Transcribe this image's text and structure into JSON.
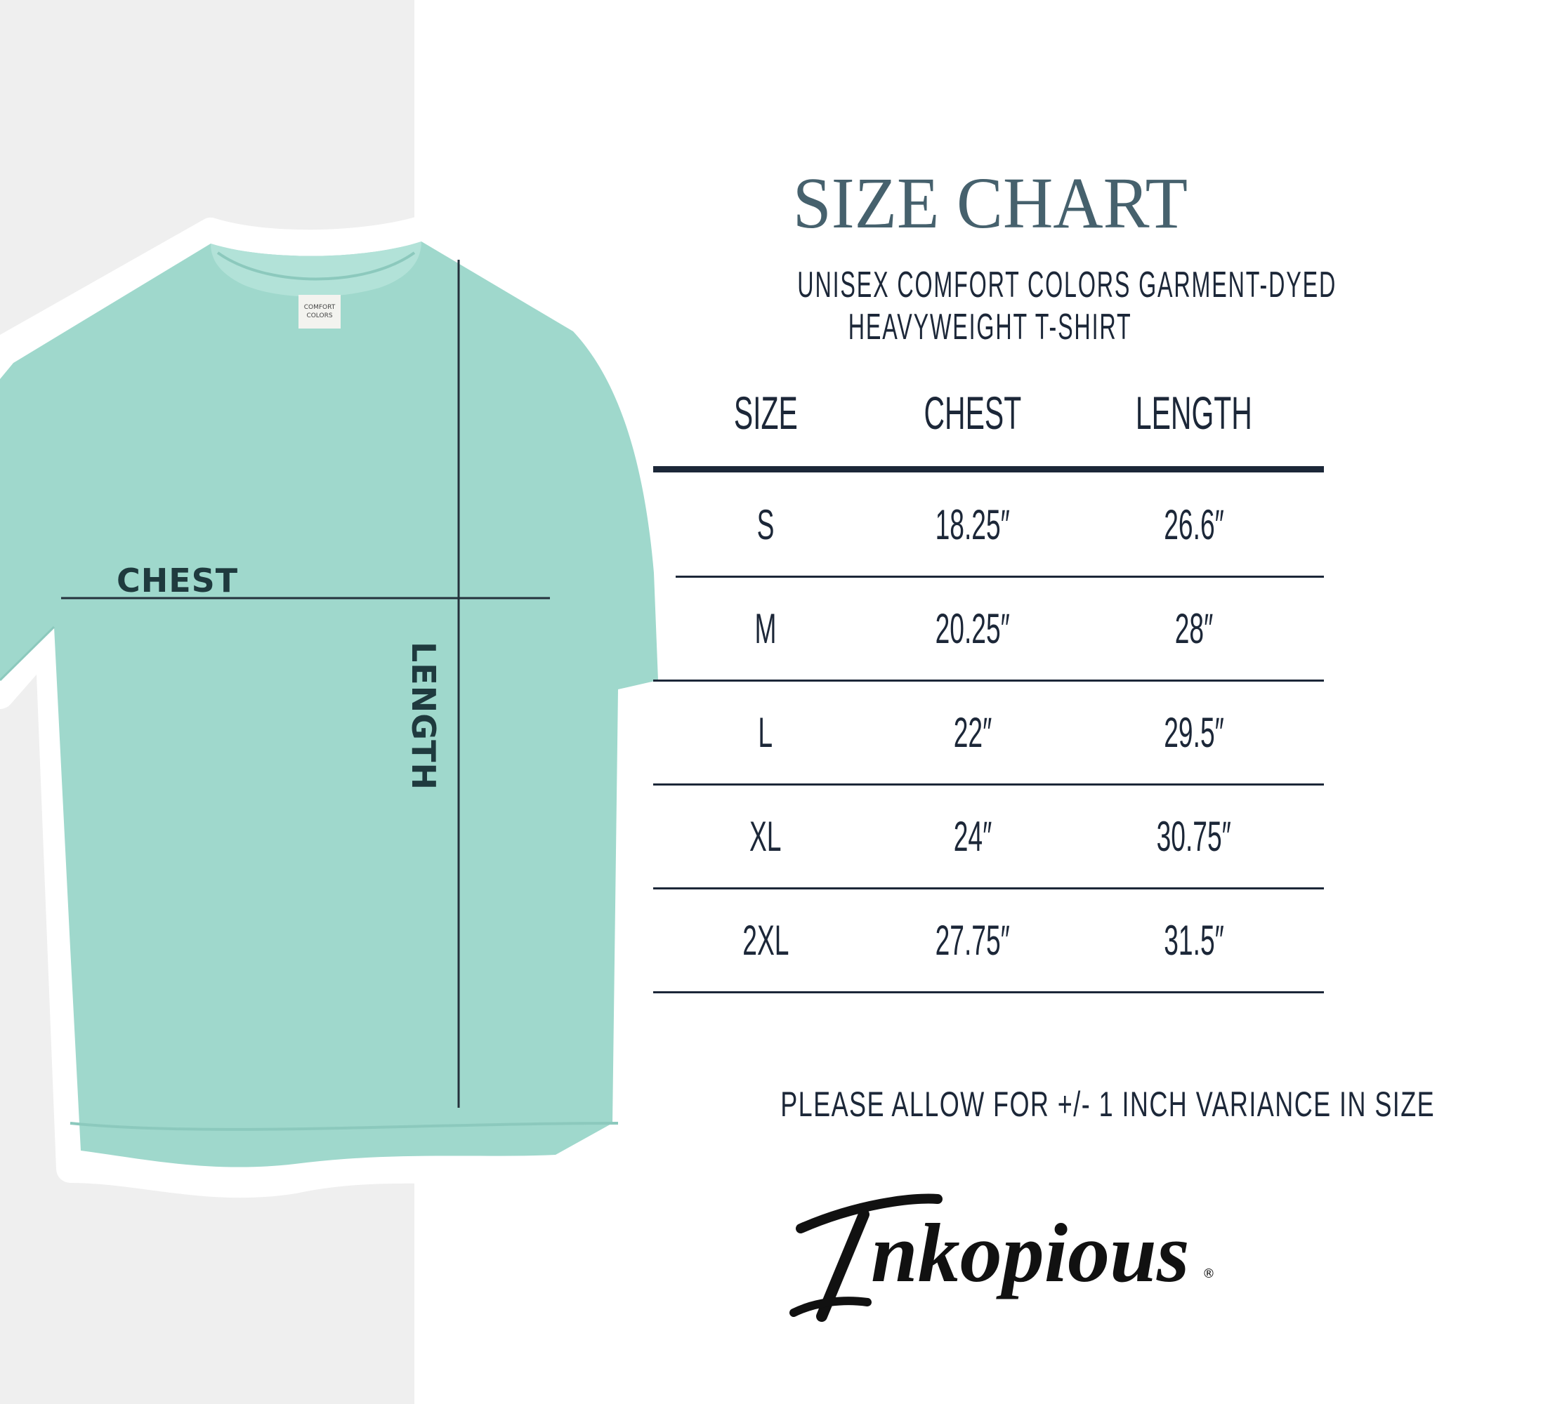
{
  "diagram": {
    "chest_label": "CHEST",
    "length_label": "LENGTH",
    "shirt_color": "#9fd8cc",
    "tag_text": "COMFORT COLORS"
  },
  "chart": {
    "title": "SIZE CHART",
    "subtitle_line1": "UNISEX COMFORT COLORS GARMENT-DYED",
    "subtitle_line2": "HEAVYWEIGHT T-SHIRT",
    "headers": [
      "SIZE",
      "CHEST",
      "LENGTH"
    ],
    "rows": [
      {
        "size": "S",
        "chest": "18.25″",
        "length": "26.6″"
      },
      {
        "size": "M",
        "chest": "20.25″",
        "length": "28″"
      },
      {
        "size": "L",
        "chest": "22″",
        "length": "29.5″"
      },
      {
        "size": "XL",
        "chest": "24″",
        "length": "30.75″"
      },
      {
        "size": "2XL",
        "chest": "27.75″",
        "length": "31.5″"
      }
    ],
    "note": "PLEASE ALLOW FOR +/- 1 INCH VARIANCE IN SIZE",
    "title_color": "#46616d",
    "text_color": "#1c2738"
  },
  "logo": {
    "text": "Inkopious",
    "mark": "®"
  }
}
